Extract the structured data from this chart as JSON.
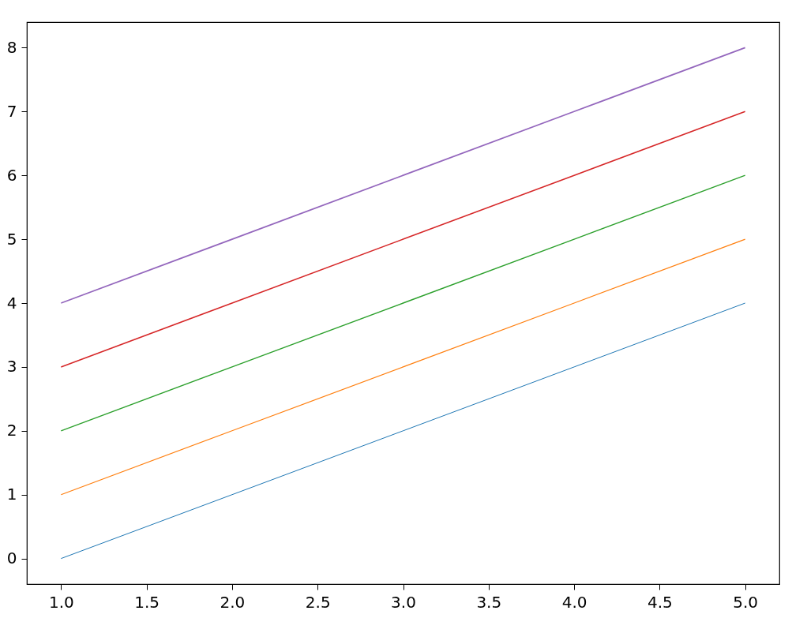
{
  "chart_data": {
    "type": "line",
    "x": [
      1,
      2,
      3,
      4,
      5
    ],
    "series": [
      {
        "color": "#1f77b4",
        "values": [
          0,
          1,
          2,
          3,
          4
        ]
      },
      {
        "color": "#ff7f0e",
        "values": [
          1,
          2,
          3,
          4,
          5
        ]
      },
      {
        "color": "#2ca02c",
        "values": [
          2,
          3,
          4,
          5,
          6
        ]
      },
      {
        "color": "#d62728",
        "values": [
          3,
          4,
          5,
          6,
          7
        ]
      },
      {
        "color": "#9467bd",
        "values": [
          4,
          5,
          6,
          7,
          8
        ]
      }
    ],
    "xlim": [
      0.8,
      5.2
    ],
    "xticks": [
      {
        "value": 1,
        "label": "1.0"
      },
      {
        "value": 1.5,
        "label": "1.5"
      },
      {
        "value": 2,
        "label": "2.0"
      },
      {
        "value": 2.5,
        "label": "2.5"
      },
      {
        "value": 3,
        "label": "3.0"
      },
      {
        "value": 3.5,
        "label": "3.5"
      },
      {
        "value": 4,
        "label": "4.0"
      },
      {
        "value": 4.5,
        "label": "4.5"
      },
      {
        "value": 5,
        "label": "5.0"
      }
    ],
    "ylim": [
      -0.4,
      8.4
    ],
    "yticks": [
      0,
      1,
      2,
      3,
      4,
      5,
      6,
      7,
      8
    ],
    "grid": false,
    "legend": false,
    "marker": "none",
    "line_style": "solid"
  }
}
